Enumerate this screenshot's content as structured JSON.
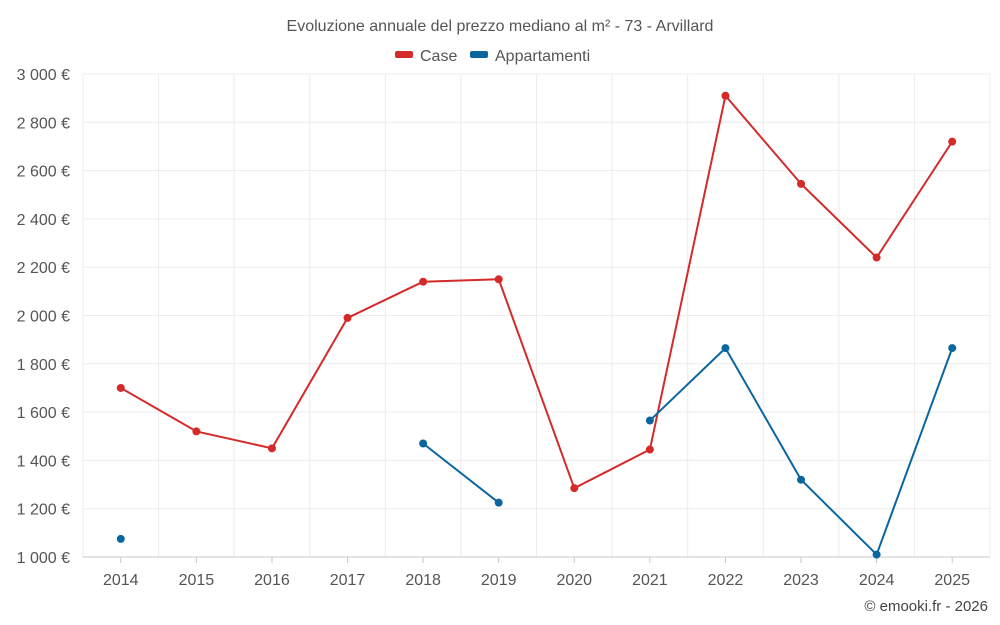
{
  "chart_data": {
    "type": "line",
    "title": "Evoluzione annuale del prezzo mediano al m² - 73 - Arvillard",
    "categories": [
      "2014",
      "2015",
      "2016",
      "2017",
      "2018",
      "2019",
      "2020",
      "2021",
      "2022",
      "2023",
      "2024",
      "2025"
    ],
    "series": [
      {
        "name": "Case",
        "color": "#d42a2a",
        "values": [
          1700,
          1520,
          1450,
          1990,
          2140,
          2150,
          1285,
          1445,
          2910,
          2545,
          2240,
          2720
        ]
      },
      {
        "name": "Appartamenti",
        "color": "#0b66a0",
        "values": [
          1075,
          null,
          null,
          null,
          1470,
          1225,
          null,
          1565,
          1865,
          1320,
          1010,
          1865
        ]
      }
    ],
    "ylim": [
      1000,
      3000
    ],
    "yticks": [
      1000,
      1200,
      1400,
      1600,
      1800,
      2000,
      2200,
      2400,
      2600,
      2800,
      3000
    ],
    "ytick_labels": [
      "1 000 €",
      "1 200 €",
      "1 400 €",
      "1 600 €",
      "1 800 €",
      "2 000 €",
      "2 200 €",
      "2 400 €",
      "2 600 €",
      "2 800 €",
      "3 000 €"
    ],
    "xlabel": "",
    "ylabel": "",
    "grid": true,
    "legend_position": "top-center"
  },
  "credit": "© emooki.fr - 2026"
}
